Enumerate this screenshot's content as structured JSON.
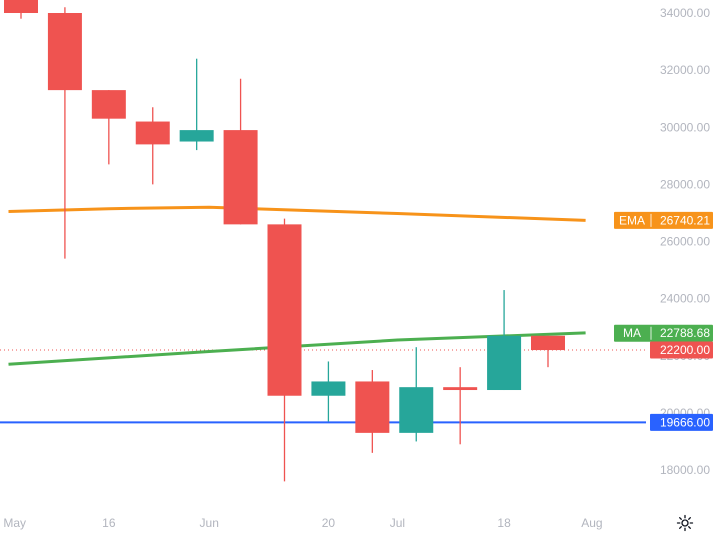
{
  "chart_data": {
    "type": "candlestick",
    "timeframe": "weekly",
    "y_ticks": [
      18000,
      20000,
      22000,
      24000,
      26000,
      28000,
      30000,
      32000,
      34000
    ],
    "y_tick_labels": [
      "18000.00",
      "20000.00",
      "22000.00",
      "24000.00",
      "26000.00",
      "28000.00",
      "30000.00",
      "32000.00",
      "34000.00"
    ],
    "ylim": [
      17000,
      34600
    ],
    "x_labels": [
      {
        "label": "May",
        "date": "2022-05-01"
      },
      {
        "label": "16",
        "date": "2022-05-16"
      },
      {
        "label": "Jun",
        "date": "2022-06-01"
      },
      {
        "label": "20",
        "date": "2022-06-20"
      },
      {
        "label": "Jul",
        "date": "2022-07-01"
      },
      {
        "label": "18",
        "date": "2022-07-18"
      },
      {
        "label": "Aug",
        "date": "2022-08-01"
      }
    ],
    "xlim": [
      "2022-04-30",
      "2022-08-15"
    ],
    "candles": [
      {
        "date": "2022-05-02",
        "open": 35500,
        "high": 35900,
        "low": 33800,
        "close": 34000
      },
      {
        "date": "2022-05-09",
        "open": 34000,
        "high": 34200,
        "low": 25400,
        "close": 31300
      },
      {
        "date": "2022-05-16",
        "open": 31300,
        "high": 31300,
        "low": 28700,
        "close": 30300
      },
      {
        "date": "2022-05-23",
        "open": 30200,
        "high": 30700,
        "low": 28000,
        "close": 29400
      },
      {
        "date": "2022-05-30",
        "open": 29500,
        "high": 32400,
        "low": 29200,
        "close": 29900
      },
      {
        "date": "2022-06-06",
        "open": 29900,
        "high": 31700,
        "low": 26600,
        "close": 26600
      },
      {
        "date": "2022-06-13",
        "open": 26600,
        "high": 26800,
        "low": 17600,
        "close": 20600
      },
      {
        "date": "2022-06-20",
        "open": 20600,
        "high": 21800,
        "low": 19700,
        "close": 21100
      },
      {
        "date": "2022-06-27",
        "open": 21100,
        "high": 21500,
        "low": 18600,
        "close": 19300
      },
      {
        "date": "2022-07-04",
        "open": 19300,
        "high": 22300,
        "low": 19000,
        "close": 20900
      },
      {
        "date": "2022-07-11",
        "open": 20900,
        "high": 21600,
        "low": 18900,
        "close": 20800
      },
      {
        "date": "2022-07-18",
        "open": 20800,
        "high": 24300,
        "low": 20800,
        "close": 22700
      },
      {
        "date": "2022-07-25",
        "open": 22700,
        "high": 22700,
        "low": 21600,
        "close": 22200
      }
    ],
    "lines": [
      {
        "id": "ema",
        "name": "EMA",
        "color": "#f7931a",
        "points": [
          [
            "2022-04-30",
            27050
          ],
          [
            "2022-05-16",
            27150
          ],
          [
            "2022-06-01",
            27200
          ],
          [
            "2022-07-01",
            26980
          ],
          [
            "2022-07-31",
            26740
          ]
        ]
      },
      {
        "id": "ma",
        "name": "MA",
        "color": "#4caf50",
        "points": [
          [
            "2022-04-30",
            21700
          ],
          [
            "2022-06-01",
            22150
          ],
          [
            "2022-07-01",
            22550
          ],
          [
            "2022-07-31",
            22800
          ]
        ]
      }
    ],
    "horizontal_lines": [
      {
        "value": 19666,
        "color": "#2962ff",
        "style": "solid"
      },
      {
        "value": 22200,
        "color": "#ef5350",
        "style": "dotted"
      }
    ],
    "price_labels": [
      {
        "tag": "EMA",
        "value": "26740.21",
        "anchor": 26740,
        "color": "#f7931a"
      },
      {
        "tag": "MA",
        "value": "22788.68",
        "anchor": 22788.68,
        "color": "#4caf50"
      },
      {
        "tag": "",
        "value": "22200.00",
        "anchor": 22200,
        "color": "#ef5350"
      },
      {
        "tag": "",
        "value": "19666.00",
        "anchor": 19666,
        "color": "#2962ff"
      }
    ],
    "up_color": "#26a69a",
    "down_color": "#ef5350"
  },
  "toolbar": {
    "settings_icon": "gear-icon"
  }
}
